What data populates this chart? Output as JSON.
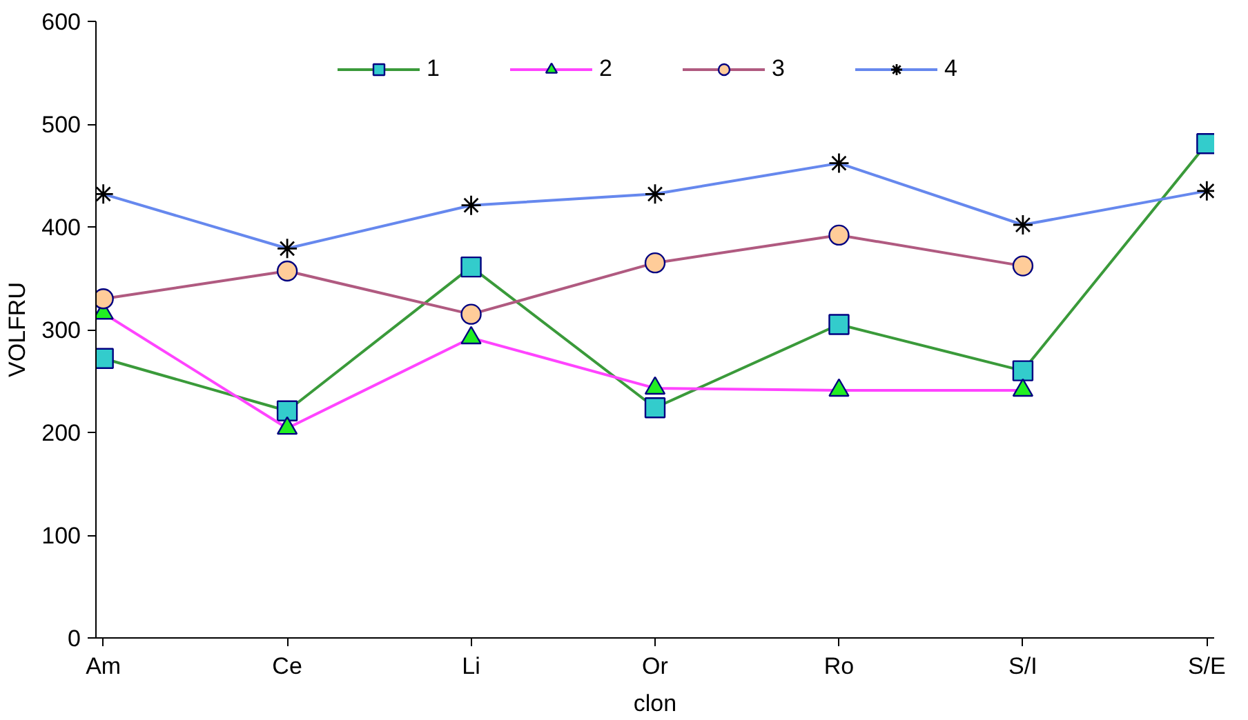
{
  "chart_data": {
    "type": "line",
    "xlabel": "clon",
    "ylabel": "VOLFRU",
    "categories": [
      "Am",
      "Ce",
      "Li",
      "Or",
      "Ro",
      "S/I",
      "S/E"
    ],
    "ylim": [
      0,
      600
    ],
    "yticks": [
      0,
      100,
      200,
      300,
      400,
      500,
      600
    ],
    "grid": false,
    "legend": "top",
    "series": [
      {
        "name": "1",
        "color": "#3a9a3a",
        "marker": "square",
        "colors": [
          "#33cccc",
          "#33cccc",
          "#33cccc",
          "#33cccc",
          "#33cccc",
          "#33cccc",
          "#33cccc"
        ],
        "values": [
          272,
          221,
          361,
          224,
          305,
          260,
          481
        ]
      },
      {
        "name": "2",
        "color": "#ff44ff",
        "marker": "triangle",
        "colors": [
          "#22ee22",
          "#22ee22",
          "#22ee22",
          "#22ee22",
          "#22ee22",
          "#22ee22",
          "#22ee22"
        ],
        "values": [
          316,
          204,
          292,
          243,
          241,
          241,
          null
        ]
      },
      {
        "name": "3",
        "color": "#b05a80",
        "marker": "circle",
        "colors": [
          "#ffcc99",
          "#ffcc99",
          "#ffcc99",
          "#ffcc99",
          "#ffcc99",
          "#ffcc99",
          "#ffcc99"
        ],
        "values": [
          330,
          357,
          315,
          365,
          392,
          362,
          null
        ]
      },
      {
        "name": "4",
        "color": "#6688ee",
        "marker": "cross",
        "colors": [
          "#ccffcc",
          "#ccffcc",
          "#ccffcc",
          "#ccffcc",
          "#ccffcc",
          "#ccffcc",
          "#ccffcc"
        ],
        "values": [
          432,
          379,
          421,
          432,
          462,
          402,
          435
        ]
      }
    ]
  }
}
